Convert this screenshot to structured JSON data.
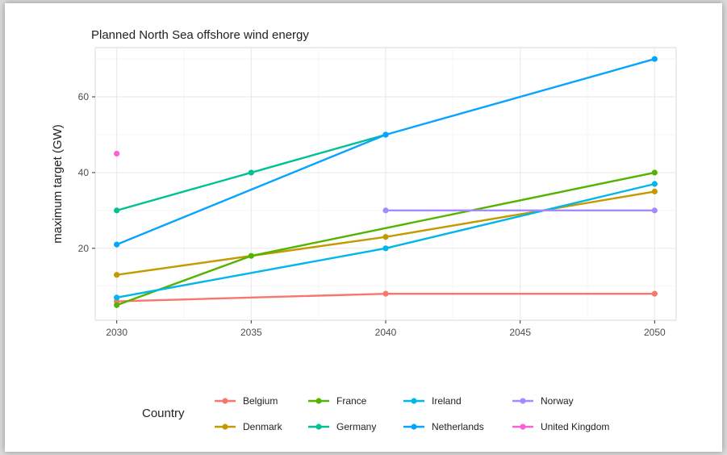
{
  "chart_data": {
    "type": "line",
    "title": "Planned North Sea offshore wind energy",
    "xlabel": "",
    "ylabel": "maximum target (GW)",
    "x_ticks": [
      2030,
      2035,
      2040,
      2045,
      2050
    ],
    "y_ticks": [
      20,
      40,
      60
    ],
    "xlim": [
      2029.2,
      2050.8
    ],
    "ylim": [
      1,
      73
    ],
    "grid": true,
    "legend_title": "Country",
    "legend_placement": "bottom",
    "series": [
      {
        "name": "Belgium",
        "color": "#F8766D",
        "points": [
          [
            2030,
            6
          ],
          [
            2040,
            8
          ],
          [
            2050,
            8
          ]
        ]
      },
      {
        "name": "Denmark",
        "color": "#C49A00",
        "points": [
          [
            2030,
            13
          ],
          [
            2040,
            23
          ],
          [
            2050,
            35
          ]
        ]
      },
      {
        "name": "France",
        "color": "#53B400",
        "points": [
          [
            2030,
            5
          ],
          [
            2035,
            18
          ],
          [
            2050,
            40
          ]
        ]
      },
      {
        "name": "Germany",
        "color": "#00C094",
        "points": [
          [
            2030,
            30
          ],
          [
            2035,
            40
          ],
          [
            2040,
            50
          ]
        ]
      },
      {
        "name": "Ireland",
        "color": "#00B6EB",
        "points": [
          [
            2030,
            7
          ],
          [
            2040,
            20
          ],
          [
            2050,
            37
          ]
        ]
      },
      {
        "name": "Netherlands",
        "color": "#06A4FF",
        "points": [
          [
            2030,
            21
          ],
          [
            2040,
            50
          ],
          [
            2050,
            70
          ]
        ]
      },
      {
        "name": "Norway",
        "color": "#A58AFF",
        "points": [
          [
            2040,
            30
          ],
          [
            2050,
            30
          ]
        ]
      },
      {
        "name": "United Kingdom",
        "color": "#FB61D7",
        "points": [
          [
            2030,
            45
          ]
        ]
      }
    ]
  }
}
